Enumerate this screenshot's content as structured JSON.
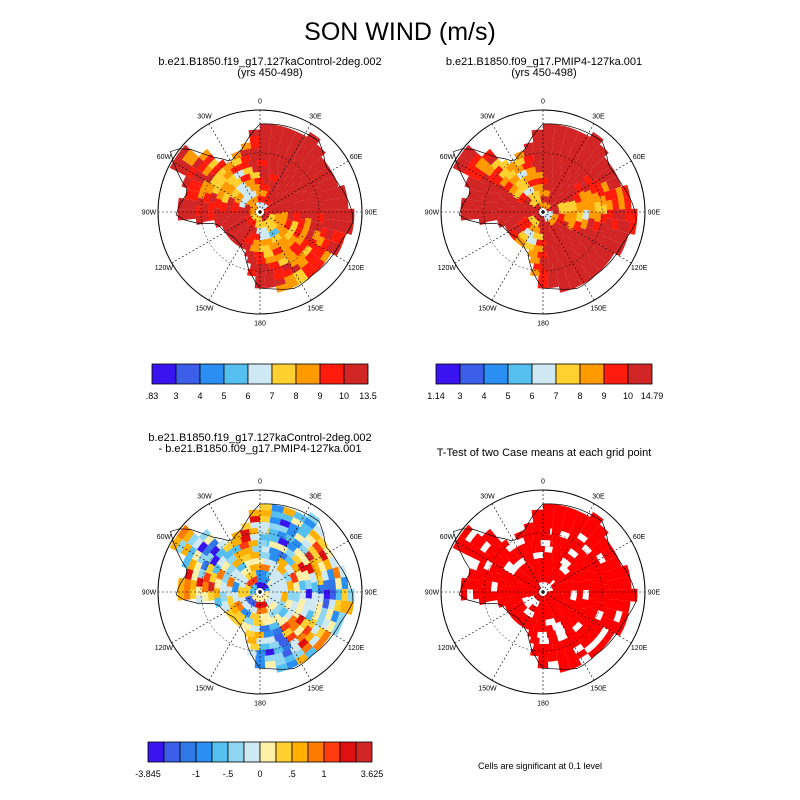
{
  "figure": {
    "title": "SON WIND (m/s)"
  },
  "panels": [
    {
      "id": "p1",
      "title_lines": [
        "b.e21.B1850.f19_g17.127kaControl-2deg.002",
        "(yrs 450-498)"
      ]
    },
    {
      "id": "p2",
      "title_lines": [
        "b.e21.B1850.f09_g17.PMIP4-127ka.001",
        "(yrs 450-498)"
      ]
    },
    {
      "id": "p3",
      "title_lines": [
        "b.e21.B1850.f19_g17.127kaControl-2deg.002",
        "- b.e21.B1850.f09_g17.PMIP4-127ka.001"
      ]
    },
    {
      "id": "p4",
      "title_lines": [
        "T-Test of two Case means at each grid point"
      ]
    }
  ],
  "longitude_labels": [
    "0",
    "30E",
    "60E",
    "90E",
    "120E",
    "150E",
    "180",
    "150W",
    "120W",
    "90W",
    "60W",
    "30W"
  ],
  "colorbars": [
    {
      "labels": [
        ".83",
        "3",
        "4",
        "5",
        "6",
        "7",
        "8",
        "9",
        "10",
        "13.5"
      ],
      "colors": [
        "#3a14f0",
        "#3d5ee8",
        "#2a8ef2",
        "#55bff0",
        "#cfe9f4",
        "#ffd030",
        "#ff9a00",
        "#ff1c0c",
        "#d22626"
      ]
    },
    {
      "labels": [
        "1.14",
        "3",
        "4",
        "5",
        "6",
        "7",
        "8",
        "9",
        "10",
        "14.79"
      ],
      "colors": [
        "#3a14f0",
        "#3d5ee8",
        "#2a8ef2",
        "#55bff0",
        "#cfe9f4",
        "#ffd030",
        "#ff9a00",
        "#ff1c0c",
        "#d22626"
      ]
    },
    {
      "labels": [
        "-3.845",
        "-1",
        "-.5",
        "0",
        ".5",
        "1",
        "3.625"
      ],
      "label_slots": [
        0,
        3,
        5,
        7,
        9,
        11,
        14
      ],
      "colors": [
        "#3a14f0",
        "#3d5ee8",
        "#3277e8",
        "#2a8ef2",
        "#55bff0",
        "#8fd6f2",
        "#cfe9f4",
        "#fff0a8",
        "#ffd030",
        "#ffb000",
        "#ff7a00",
        "#ff3c10",
        "#e01010",
        "#d22626"
      ]
    }
  ],
  "footnote": "Cells are significant at 0.1 level"
}
